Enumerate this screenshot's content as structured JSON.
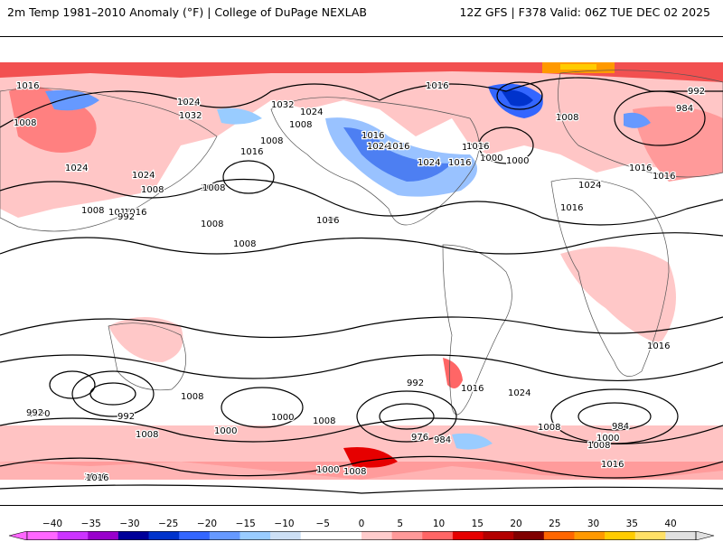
{
  "header": {
    "title_left": "2m Temp 1981–2010 Anomaly (°F) | College of DuPage NEXLAB",
    "title_right": "12Z GFS | F378 Valid: 06Z TUE DEC 02 2025"
  },
  "map": {
    "isobar_labels": [
      "1016",
      "1024",
      "1032",
      "1008",
      "1024",
      "1024",
      "1008",
      "1016",
      "1008",
      "1008",
      "1016",
      "1008",
      "1032",
      "1024",
      "1008",
      "1016",
      "1016",
      "1008",
      "1024",
      "1016",
      "1024",
      "1016",
      "1008",
      "1000",
      "1016",
      "1016",
      "1000",
      "984",
      "992",
      "1016",
      "1016",
      "1024",
      "1016",
      "1016",
      "1008",
      "1008",
      "1016",
      "1008",
      "992",
      "1000",
      "992",
      "1000",
      "1008",
      "1008",
      "1000",
      "1008",
      "1016",
      "992",
      "976",
      "984",
      "1024",
      "1016",
      "1008",
      "1000",
      "1016",
      "984",
      "1008",
      "1000",
      "1016",
      "1000",
      "1008",
      "1016",
      "992"
    ]
  },
  "colorbar": {
    "labels": [
      "−40",
      "−35",
      "−30",
      "−25",
      "−20",
      "−15",
      "−10",
      "−5",
      "0",
      "5",
      "10",
      "15",
      "20",
      "25",
      "30",
      "35",
      "40"
    ],
    "colors": [
      "#ff66ff",
      "#cc33ff",
      "#9900cc",
      "#000099",
      "#0033cc",
      "#3366ff",
      "#6699ff",
      "#99ccff",
      "#ccdff5",
      "#ffffff",
      "#ffffff",
      "#ffcccc",
      "#ff9999",
      "#ff6666",
      "#e60000",
      "#b30000",
      "#800000",
      "#ff6600",
      "#ff9900",
      "#ffcc00",
      "#ffe066",
      "#e0e0e0"
    ]
  }
}
